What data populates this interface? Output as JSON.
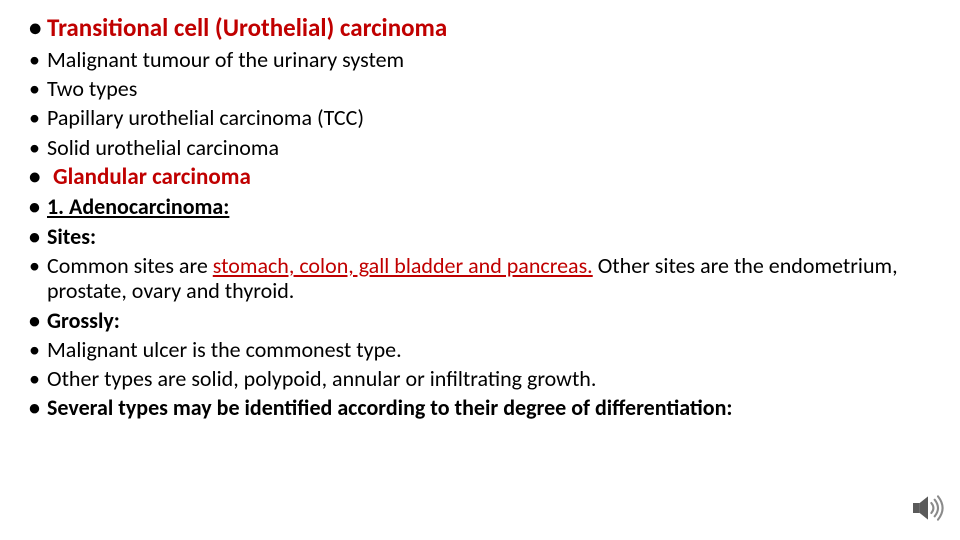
{
  "colors": {
    "heading_red": "#c00000",
    "body_text": "#000000",
    "background": "#ffffff",
    "icon_gray": "#8a8a8a",
    "icon_dark": "#5a5a5a"
  },
  "typography": {
    "font_family": "Calibri",
    "h1_size_pt": 19,
    "h2_size_pt": 17,
    "body_size_pt": 16,
    "h1_weight": 700,
    "h2_weight": 700,
    "body_weight": 400
  },
  "bullets": [
    {
      "text": "Transitional cell (Urothelial) carcinoma",
      "class": "h1"
    },
    {
      "text": "Malignant tumour of the urinary system",
      "class": "body"
    },
    {
      "text": "Two types",
      "class": "body"
    },
    {
      "text": "Papillary urothelial carcinoma (TCC)",
      "class": "body"
    },
    {
      "text": "Solid urothelial carcinoma",
      "class": "body"
    },
    {
      "text": "Glandular carcinoma",
      "class": "h2"
    },
    {
      "text": "1. Adenocarcinoma:",
      "class": "body bold underline"
    },
    {
      "text": "Sites:",
      "class": "body bold"
    },
    {
      "segments": [
        {
          "text": "Common sites are ",
          "class": ""
        },
        {
          "text": "stomach, colon, gall bladder and pancreas.",
          "class": "red underline"
        },
        {
          "text": "  Other sites are the endometrium, prostate, ovary and thyroid.",
          "class": ""
        }
      ],
      "class": "body"
    },
    {
      "text": "Grossly:",
      "class": "body bold"
    },
    {
      "text": "Malignant ulcer is the commonest type.",
      "class": "body"
    },
    {
      "text": "Other types are solid, polypoid, annular or infiltrating growth.",
      "class": "body"
    },
    {
      "text": "Several types may be identified according to their degree of differentiation:",
      "class": "body bold"
    }
  ],
  "icon": {
    "name": "speaker-icon",
    "arcs_color": "#8a8a8a",
    "body_color": "#5a5a5a"
  }
}
